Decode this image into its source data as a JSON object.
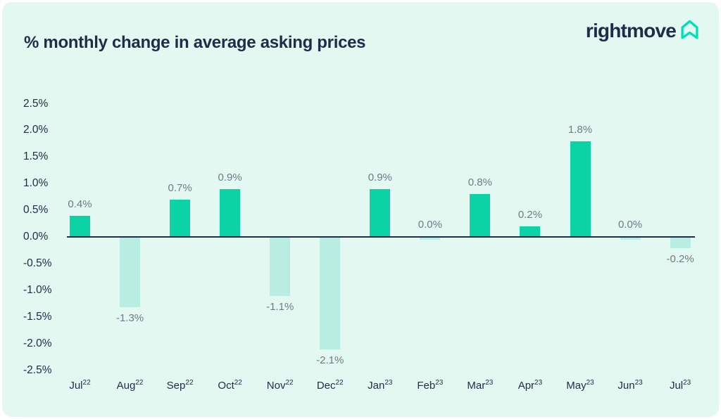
{
  "header": {
    "title": "% monthly change in average asking prices"
  },
  "logo": {
    "text": "rightmove",
    "icon": "house-arrow-icon"
  },
  "colors": {
    "page_background": "#ffffff",
    "card_background": "#e4f8f2",
    "positive_bar": "#0cd3a5",
    "negative_bar": "#b9ede1",
    "navy_text": "#222b47",
    "value_label": "#6e7b85",
    "axis_line": "#222b47",
    "logo_teal": "#00deb6"
  },
  "chart_data": {
    "type": "bar",
    "title": "% monthly change in average asking prices",
    "categories": [
      {
        "month": "Jul",
        "year": "22"
      },
      {
        "month": "Aug",
        "year": "22"
      },
      {
        "month": "Sep",
        "year": "22"
      },
      {
        "month": "Oct",
        "year": "22"
      },
      {
        "month": "Nov",
        "year": "22"
      },
      {
        "month": "Dec",
        "year": "22"
      },
      {
        "month": "Jan",
        "year": "23"
      },
      {
        "month": "Feb",
        "year": "23"
      },
      {
        "month": "Mar",
        "year": "23"
      },
      {
        "month": "Apr",
        "year": "23"
      },
      {
        "month": "May",
        "year": "23"
      },
      {
        "month": "Jun",
        "year": "23"
      },
      {
        "month": "Jul",
        "year": "23"
      }
    ],
    "values": [
      0.4,
      -1.3,
      0.7,
      0.9,
      -1.1,
      -2.1,
      0.9,
      0.0,
      0.8,
      0.2,
      1.8,
      0.0,
      -0.2
    ],
    "value_labels": [
      "0.4%",
      "-1.3%",
      "0.7%",
      "0.9%",
      "-1.1%",
      "-2.1%",
      "0.9%",
      "0.0%",
      "0.8%",
      "0.2%",
      "1.8%",
      "0.0%",
      "-0.2%"
    ],
    "xlabel": "",
    "ylabel": "",
    "y_ticks": {
      "labels": [
        "2.5%",
        "2.0%",
        "1.5%",
        "1.0%",
        "0.5%",
        "0.0%",
        "-0.5%",
        "-1.0%",
        "-1.5%",
        "-2.0%",
        "-2.5%"
      ],
      "values": [
        2.5,
        2.0,
        1.5,
        1.0,
        0.5,
        0.0,
        -0.5,
        -1.0,
        -1.5,
        -2.0,
        -2.5
      ]
    },
    "ylim": [
      -2.5,
      2.5
    ],
    "grid": false,
    "legend": false
  }
}
